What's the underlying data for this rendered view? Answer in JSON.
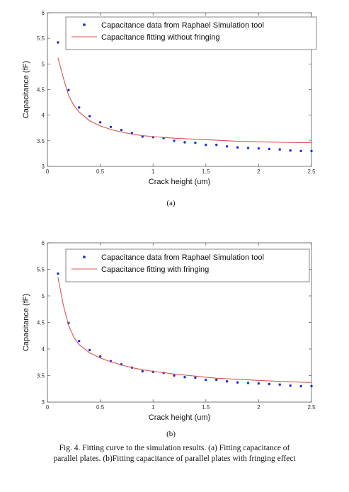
{
  "caption": {
    "line1": "Fig. 4.   Fitting curve to the simulation results. (a) Fitting capacitance of",
    "line2": "parallel plates. (b)Fitting capacitance of parallel plates with fringing effect"
  },
  "chart_data": [
    {
      "type": "scatter",
      "sublabel": "(a)",
      "xlabel": "Crack height (um)",
      "ylabel": "Capacitance (fF)",
      "xlim": [
        0,
        2.5
      ],
      "ylim": [
        3,
        6
      ],
      "xticks": [
        "0",
        "0.5",
        "1",
        "1.5",
        "2",
        "2.5"
      ],
      "yticks": [
        "3",
        "3.5",
        "4",
        "4.5",
        "5",
        "5.5",
        "6"
      ],
      "grid": false,
      "legend_position": "top-right",
      "series": [
        {
          "name": "Capacitance data from Raphael Simulation tool",
          "style": "markers",
          "color": "#1f2fd6",
          "x": [
            0.1,
            0.2,
            0.3,
            0.4,
            0.5,
            0.6,
            0.7,
            0.8,
            0.9,
            1.0,
            1.1,
            1.2,
            1.3,
            1.4,
            1.5,
            1.6,
            1.7,
            1.8,
            1.9,
            2.0,
            2.1,
            2.2,
            2.3,
            2.4,
            2.5
          ],
          "y": [
            5.42,
            4.49,
            4.15,
            3.98,
            3.86,
            3.77,
            3.71,
            3.65,
            3.58,
            3.57,
            3.55,
            3.5,
            3.47,
            3.46,
            3.42,
            3.42,
            3.39,
            3.37,
            3.36,
            3.35,
            3.34,
            3.33,
            3.31,
            3.3,
            3.3
          ]
        },
        {
          "name": "Capacitance fitting without fringing",
          "style": "line",
          "color": "#d9534f",
          "x": [
            0.1,
            0.15,
            0.2,
            0.25,
            0.3,
            0.4,
            0.5,
            0.6,
            0.7,
            0.8,
            0.9,
            1.0,
            1.2,
            1.4,
            1.6,
            1.8,
            2.0,
            2.2,
            2.5
          ],
          "y": [
            5.12,
            4.73,
            4.39,
            4.19,
            4.06,
            3.89,
            3.79,
            3.72,
            3.67,
            3.63,
            3.6,
            3.58,
            3.55,
            3.53,
            3.51,
            3.49,
            3.48,
            3.47,
            3.46
          ]
        }
      ]
    },
    {
      "type": "scatter",
      "sublabel": "(b)",
      "xlabel": "Crack height (um)",
      "ylabel": "Capacitance (fF)",
      "xlim": [
        0,
        2.5
      ],
      "ylim": [
        3,
        6
      ],
      "xticks": [
        "0",
        "0.5",
        "1",
        "1.5",
        "2",
        "2.5"
      ],
      "yticks": [
        "3",
        "3.5",
        "4",
        "4.5",
        "5",
        "5.5",
        "6"
      ],
      "grid": false,
      "legend_position": "top-right",
      "series": [
        {
          "name": "Capacitance data from Raphael Simulation tool",
          "style": "markers",
          "color": "#1f2fd6",
          "x": [
            0.1,
            0.2,
            0.3,
            0.4,
            0.5,
            0.6,
            0.7,
            0.8,
            0.9,
            1.0,
            1.1,
            1.2,
            1.3,
            1.4,
            1.5,
            1.6,
            1.7,
            1.8,
            1.9,
            2.0,
            2.1,
            2.2,
            2.3,
            2.4,
            2.5
          ],
          "y": [
            5.42,
            4.49,
            4.15,
            3.98,
            3.86,
            3.77,
            3.71,
            3.65,
            3.58,
            3.57,
            3.55,
            3.5,
            3.47,
            3.46,
            3.42,
            3.42,
            3.39,
            3.37,
            3.36,
            3.35,
            3.34,
            3.33,
            3.31,
            3.3,
            3.3
          ]
        },
        {
          "name": "Capacitance fitting with fringing",
          "style": "line",
          "color": "#d9534f",
          "x": [
            0.1,
            0.15,
            0.2,
            0.25,
            0.3,
            0.4,
            0.5,
            0.6,
            0.7,
            0.8,
            0.9,
            1.0,
            1.2,
            1.4,
            1.6,
            1.8,
            2.0,
            2.2,
            2.5
          ],
          "y": [
            5.35,
            4.83,
            4.45,
            4.22,
            4.08,
            3.93,
            3.83,
            3.76,
            3.7,
            3.65,
            3.61,
            3.58,
            3.53,
            3.49,
            3.45,
            3.43,
            3.41,
            3.39,
            3.37
          ]
        }
      ]
    }
  ]
}
